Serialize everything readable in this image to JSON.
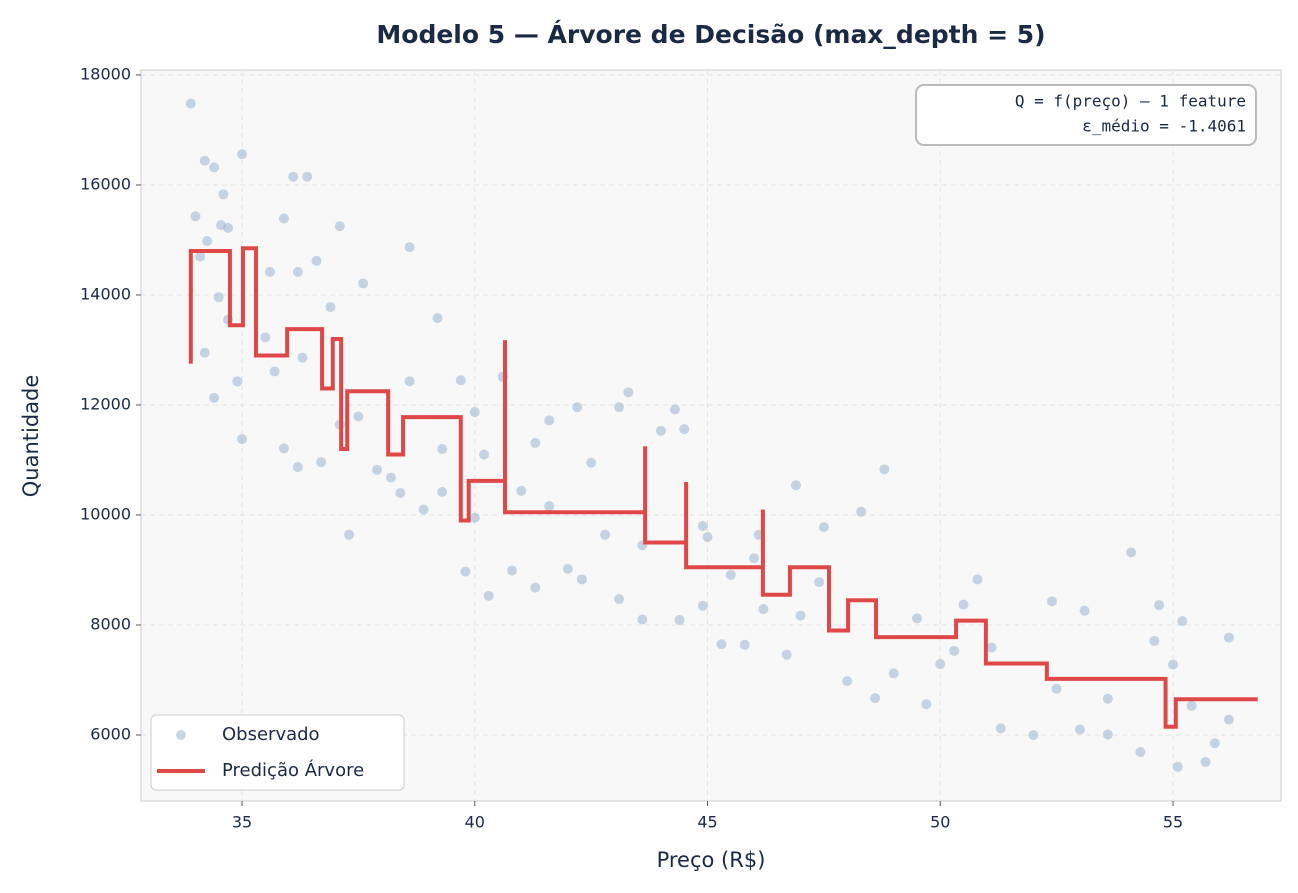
{
  "chart_data": {
    "type": "scatter",
    "title": "Modelo 5 — Árvore de Decisão  (max_depth = 5)",
    "x_label": "Preço (R$)",
    "y_label": "Quantidade",
    "annotations": [
      "Q = f(preço)  —  1 feature",
      "ε_médio = -1.4061"
    ],
    "xlim": [
      32.83,
      57.32
    ],
    "ylim": [
      4800,
      18090
    ],
    "xticks": [
      35,
      40,
      45,
      50,
      55
    ],
    "yticks": [
      6000,
      8000,
      10000,
      12000,
      14000,
      16000,
      18000
    ],
    "grid": true,
    "legend": "lower left",
    "series": [
      {
        "name": "Observado",
        "type": "scatter",
        "color": "#8fadd0",
        "x": [
          33.9,
          34.0,
          34.2,
          34.4,
          34.6,
          35.0,
          36.1,
          36.4,
          34.1,
          34.25,
          34.55,
          34.7,
          35.9,
          36.6,
          37.1,
          38.6,
          34.5,
          35.6,
          36.2,
          37.6,
          36.9,
          39.2,
          34.2,
          34.4,
          34.9,
          35.0,
          35.9,
          36.2,
          36.7,
          37.3,
          37.9,
          38.2,
          38.4,
          38.9,
          39.3,
          39.8,
          40.3,
          40.8,
          41.3,
          41.3,
          40.6,
          39.7,
          40.0,
          41.6,
          42.2,
          42.5,
          43.1,
          43.3,
          44.0,
          44.3,
          44.5,
          43.6,
          42.0,
          42.3,
          43.1,
          43.6,
          44.4,
          44.9,
          45.3,
          45.8,
          46.2,
          46.7,
          46.9,
          47.5,
          48.3,
          48.8,
          47.0,
          48.0,
          48.6,
          49.0,
          49.7,
          50.3,
          50.8,
          51.3,
          52.0,
          52.5,
          53.0,
          53.6,
          54.1,
          54.6,
          54.7,
          54.3,
          55.1,
          55.4,
          55.7,
          55.9,
          56.2,
          56.2,
          55.2,
          53.1,
          51.1,
          50.5,
          49.5,
          52.4,
          45.0,
          45.5,
          46.0,
          42.8,
          41.0,
          40.2,
          39.3,
          38.6,
          37.5,
          37.1,
          36.3,
          35.5,
          34.7,
          35.7,
          40.0,
          44.9,
          47.4,
          50.0,
          53.6,
          55.0,
          41.6,
          46.1
        ],
        "values": [
          17480,
          15430,
          16440,
          16320,
          15830,
          16560,
          16150,
          16150,
          14700,
          14980,
          15270,
          15220,
          15390,
          14620,
          15250,
          14870,
          13960,
          14420,
          14420,
          14210,
          13780,
          13580,
          12950,
          12130,
          12430,
          11380,
          11210,
          10870,
          10960,
          9640,
          10820,
          10680,
          10400,
          10100,
          10420,
          8970,
          8530,
          8990,
          8680,
          11310,
          12510,
          12450,
          11870,
          11720,
          11960,
          10950,
          11960,
          12230,
          11530,
          11920,
          11560,
          9450,
          9020,
          8830,
          8470,
          8100,
          8090,
          8350,
          7650,
          7640,
          8290,
          7460,
          10540,
          9780,
          10060,
          10830,
          8170,
          6980,
          6670,
          7120,
          6560,
          7530,
          8830,
          6120,
          6000,
          6840,
          6100,
          6010,
          9320,
          7710,
          8360,
          5690,
          5420,
          6530,
          5510,
          5850,
          6280,
          7770,
          8070,
          8260,
          7590,
          8370,
          8120,
          8430,
          9600,
          8910,
          9210,
          9640,
          10440,
          11100,
          11200,
          12430,
          11790,
          11640,
          12860,
          13230,
          13550,
          12610,
          9950,
          9800,
          8780,
          7290,
          6660,
          7280,
          10160,
          9640
        ]
      },
      {
        "name": "Predição Árvore",
        "type": "line",
        "color": "#e04848",
        "x": [
          33.9,
          33.9,
          34.74,
          34.74,
          35.02,
          35.02,
          35.3,
          35.3,
          35.97,
          35.97,
          36.72,
          36.72,
          36.95,
          36.95,
          37.13,
          37.13,
          37.26,
          37.26,
          38.14,
          38.14,
          38.46,
          38.46,
          39.7,
          39.7,
          39.87,
          39.87,
          40.65,
          40.65,
          40.65,
          43.66,
          43.66,
          43.66,
          44.54,
          44.54,
          44.54,
          46.19,
          46.19,
          46.19,
          46.77,
          46.77,
          47.61,
          47.61,
          48.02,
          48.02,
          48.62,
          48.62,
          50.34,
          50.34,
          50.98,
          50.98,
          52.29,
          52.29,
          54.84,
          54.84,
          55.06,
          55.06,
          56.82
        ],
        "values": [
          12750,
          14800,
          14800,
          13450,
          13450,
          14850,
          14850,
          12900,
          12900,
          13380,
          13380,
          12300,
          12300,
          13200,
          13200,
          11200,
          11200,
          12250,
          12250,
          11100,
          11100,
          11780,
          11780,
          9900,
          9900,
          10620,
          10620,
          13180,
          10050,
          10050,
          11250,
          9500,
          9500,
          10600,
          9050,
          9050,
          10100,
          8550,
          8550,
          9050,
          9050,
          7900,
          7900,
          8450,
          8450,
          7780,
          7780,
          8080,
          8080,
          7300,
          7300,
          7020,
          7020,
          6150,
          6150,
          6650,
          6650
        ]
      }
    ]
  }
}
